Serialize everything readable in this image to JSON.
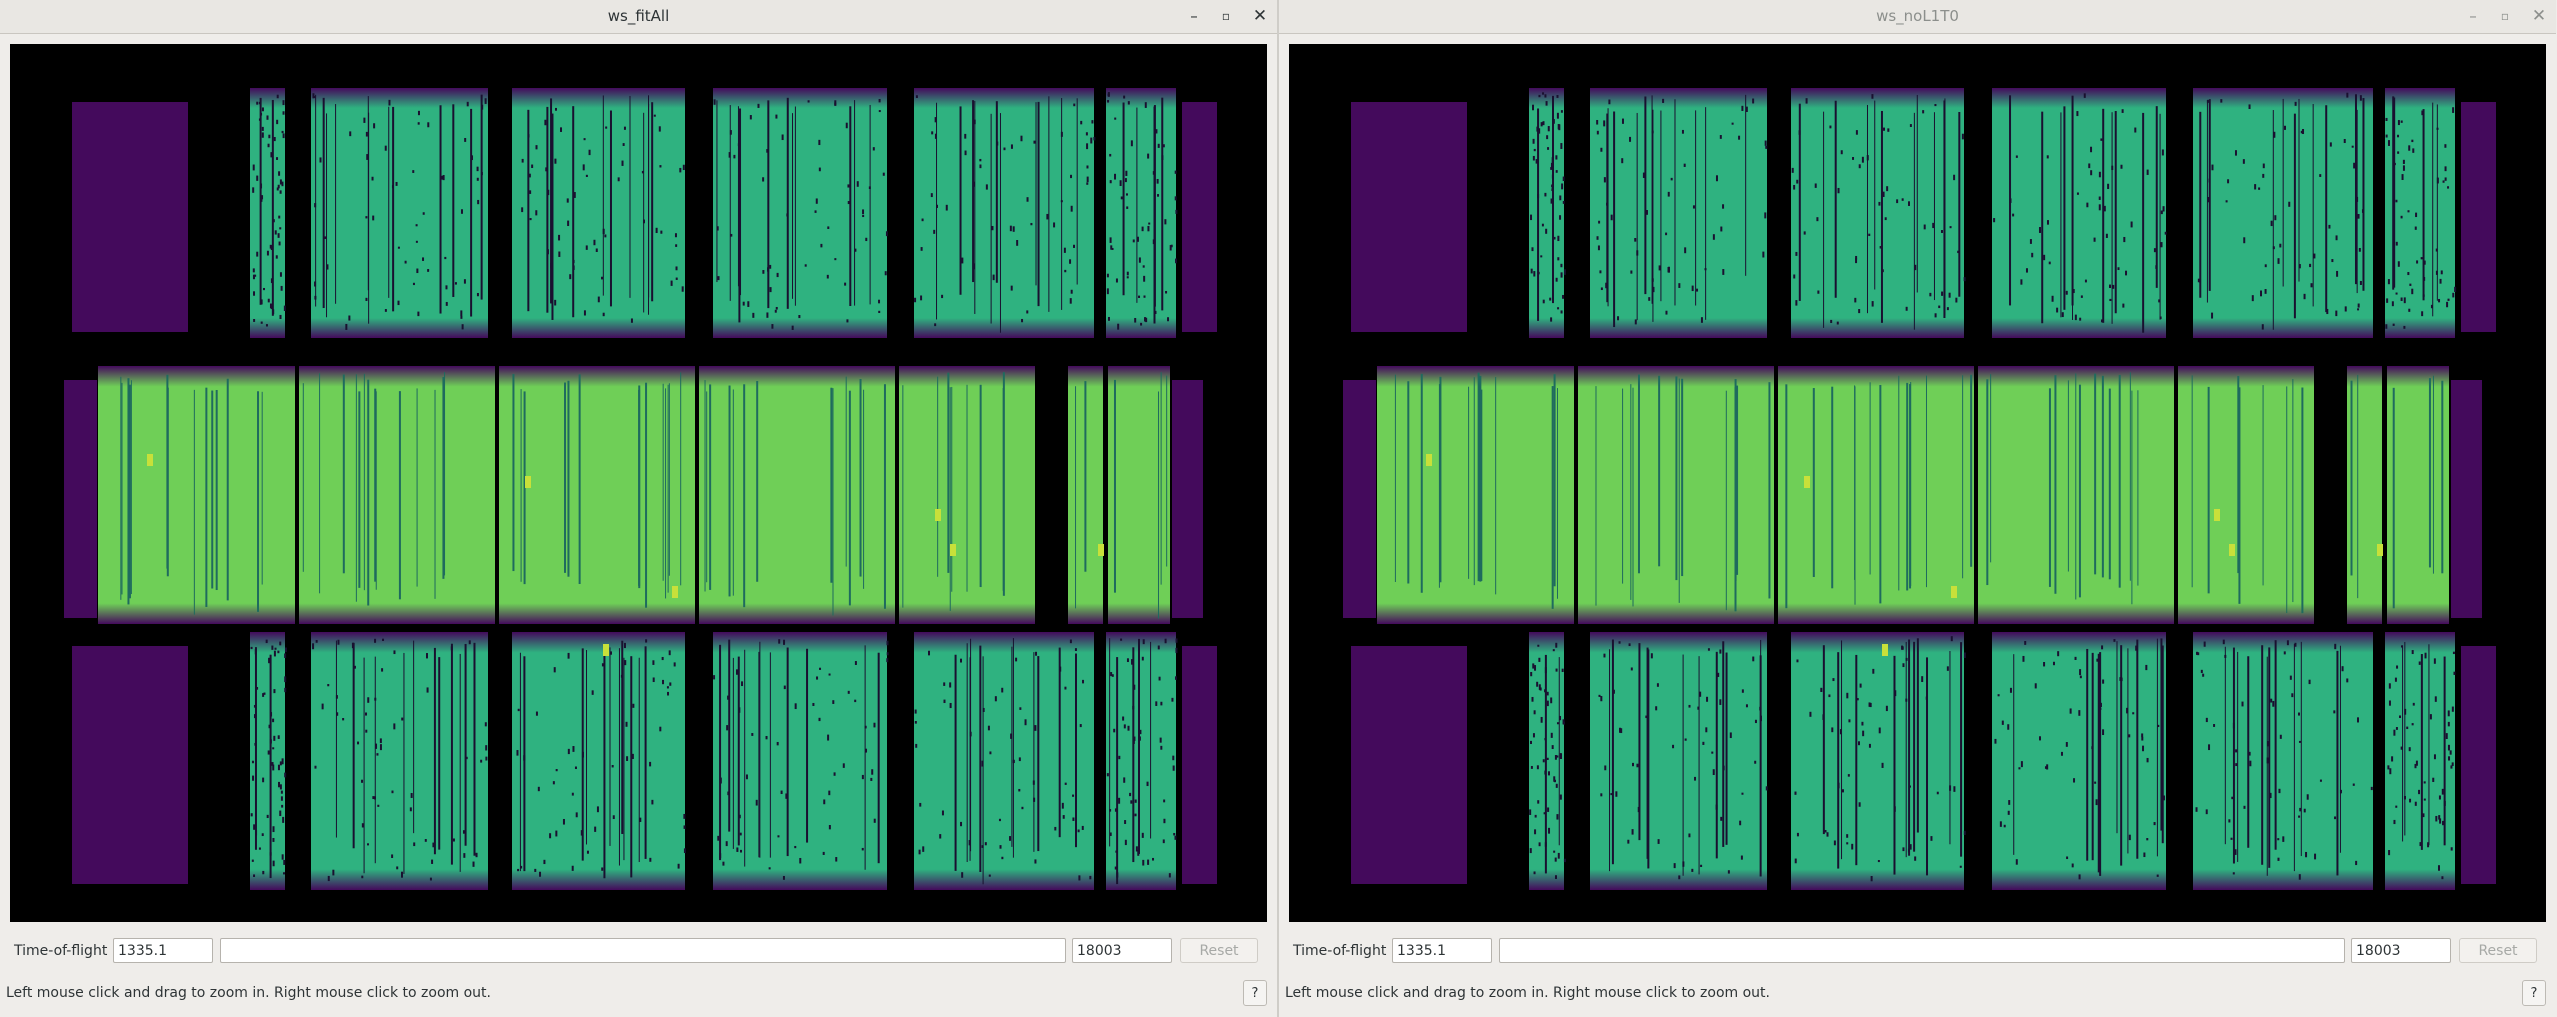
{
  "colors": {
    "background": "#000000",
    "empty_bank": "#440a5c",
    "high": "#6fcf57",
    "mid": "#2fb280",
    "peak": "#c8e03a",
    "gap": "#1a1030"
  },
  "windows": [
    {
      "title": "ws_fitAll",
      "active": true,
      "controls": {
        "minimize": "–",
        "maximize": "▫",
        "close": "✕"
      },
      "icons": {
        "minimize": "minimize-icon",
        "maximize": "maximize-icon",
        "close": "close-icon"
      },
      "plot": {
        "colormap": "viridis",
        "kind": "instrument-view detector image"
      },
      "tof_label": "Time-of-flight",
      "tof_min": "1335.1",
      "tof_max": "18003",
      "reset_label": "Reset",
      "status": "Left mouse click and drag to zoom in. Right mouse click to zoom out.",
      "help_label": "?"
    },
    {
      "title": "ws_noL1T0",
      "active": false,
      "controls": {
        "minimize": "–",
        "maximize": "▫",
        "close": "✕"
      },
      "icons": {
        "minimize": "minimize-icon",
        "maximize": "maximize-icon",
        "close": "close-icon"
      },
      "plot": {
        "colormap": "viridis",
        "kind": "instrument-view detector image"
      },
      "tof_label": "Time-of-flight",
      "tof_min": "1335.1",
      "tof_max": "18003",
      "reset_label": "Reset",
      "status": "Left mouse click and drag to zoom in. Right mouse click to zoom out.",
      "help_label": "?"
    }
  ]
}
